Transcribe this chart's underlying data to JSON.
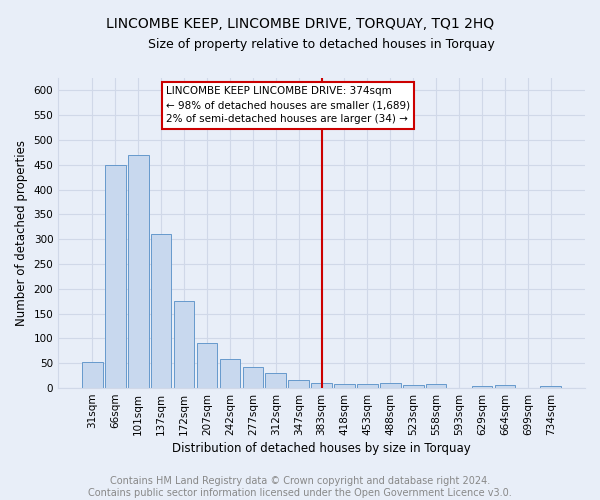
{
  "title": "LINCOMBE KEEP, LINCOMBE DRIVE, TORQUAY, TQ1 2HQ",
  "subtitle": "Size of property relative to detached houses in Torquay",
  "xlabel": "Distribution of detached houses by size in Torquay",
  "ylabel": "Number of detached properties",
  "categories": [
    "31sqm",
    "66sqm",
    "101sqm",
    "137sqm",
    "172sqm",
    "207sqm",
    "242sqm",
    "277sqm",
    "312sqm",
    "347sqm",
    "383sqm",
    "418sqm",
    "453sqm",
    "488sqm",
    "523sqm",
    "558sqm",
    "593sqm",
    "629sqm",
    "664sqm",
    "699sqm",
    "734sqm"
  ],
  "values": [
    53,
    450,
    470,
    310,
    175,
    90,
    58,
    43,
    30,
    16,
    10,
    9,
    9,
    10,
    7,
    8,
    0,
    5,
    6,
    0,
    5
  ],
  "bar_color": "#c8d8ee",
  "bar_edge_color": "#6699cc",
  "background_color": "#e8eef8",
  "grid_color": "#d0d8e8",
  "redline_x": 10,
  "annotation_title": "LINCOMBE KEEP LINCOMBE DRIVE: 374sqm",
  "annotation_line1": "← 98% of detached houses are smaller (1,689)",
  "annotation_line2": "2% of semi-detached houses are larger (34) →",
  "annotation_box_color": "#ffffff",
  "annotation_border_color": "#cc0000",
  "redline_color": "#cc0000",
  "ylim": [
    0,
    625
  ],
  "yticks": [
    0,
    50,
    100,
    150,
    200,
    250,
    300,
    350,
    400,
    450,
    500,
    550,
    600
  ],
  "footer1": "Contains HM Land Registry data © Crown copyright and database right 2024.",
  "footer2": "Contains public sector information licensed under the Open Government Licence v3.0.",
  "title_fontsize": 10,
  "subtitle_fontsize": 9,
  "xlabel_fontsize": 8.5,
  "ylabel_fontsize": 8.5,
  "tick_fontsize": 7.5,
  "footer_fontsize": 7,
  "ann_fontsize": 7.5
}
